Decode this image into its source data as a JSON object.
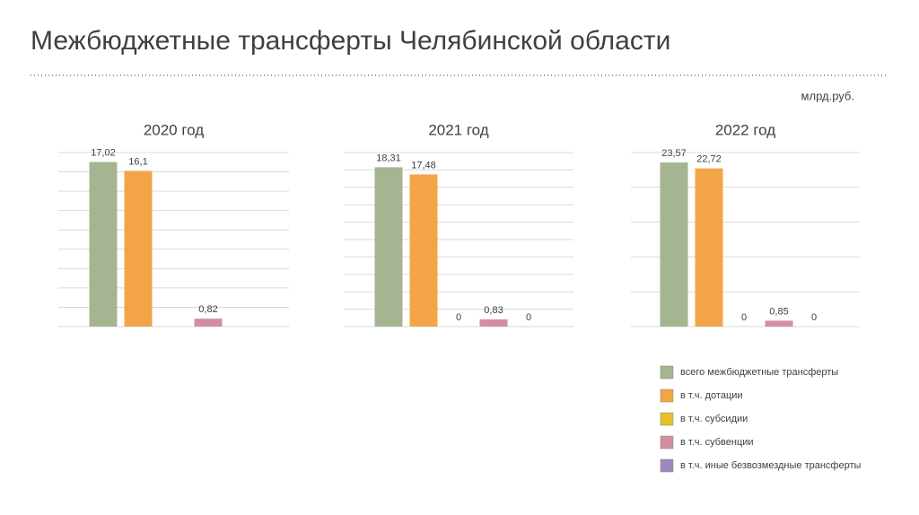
{
  "title": "Межбюджетные трансферты Челябинской области",
  "unit": "млрд.руб.",
  "legend": {
    "labels": [
      "всего межбюджетные трансферты",
      "в т.ч. дотации",
      "в т.ч. субсидии",
      "в т.ч. субвенции",
      "в т.ч. иные безвозмездные трансферты"
    ],
    "colors": [
      "#a5b592",
      "#f3a447",
      "#e6c12c",
      "#d38ea2",
      "#9f88c2"
    ]
  },
  "chart_data": [
    {
      "type": "bar",
      "title": "2020 год",
      "values": [
        17.02,
        16.1,
        null,
        0.82,
        null
      ],
      "value_labels": [
        "17,02",
        "16,1",
        null,
        "0,82",
        null
      ],
      "ylim": [
        0,
        18
      ],
      "yticks": [
        0,
        2,
        4,
        6,
        8,
        10,
        12,
        14,
        16,
        18
      ],
      "grid": true
    },
    {
      "type": "bar",
      "title": "2021 год",
      "values": [
        18.31,
        17.48,
        0,
        0.83,
        0
      ],
      "value_labels": [
        "18,31",
        "17,48",
        "0",
        "0,83",
        "0"
      ],
      "ylim": [
        0,
        20
      ],
      "yticks": [
        0,
        2,
        4,
        6,
        8,
        10,
        12,
        14,
        16,
        18,
        20
      ],
      "grid": true
    },
    {
      "type": "bar",
      "title": "2022 год",
      "values": [
        23.57,
        22.72,
        0,
        0.85,
        0
      ],
      "value_labels": [
        "23,57",
        "22,72",
        "0",
        "0,85",
        "0"
      ],
      "ylim": [
        0,
        25
      ],
      "yticks": [
        0,
        5,
        10,
        15,
        20,
        25
      ],
      "grid": true
    }
  ]
}
